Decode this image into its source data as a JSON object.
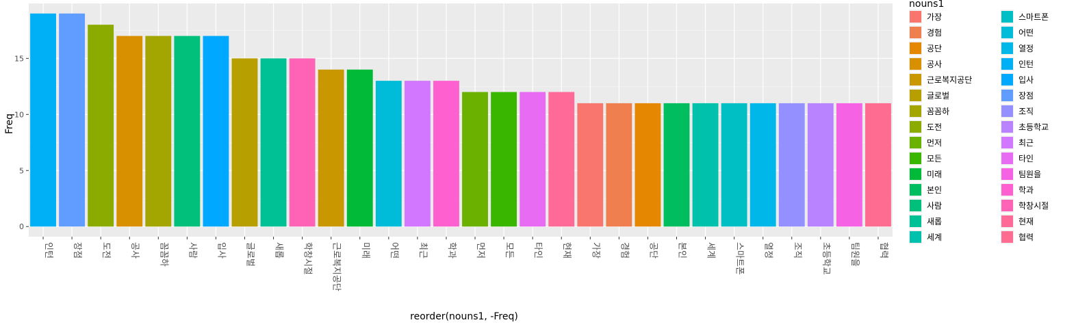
{
  "chart_data": {
    "type": "bar",
    "title": "",
    "xlabel": "reorder(nouns1, -Freq)",
    "ylabel": "Freq",
    "ylim": [
      -0.9,
      19.9
    ],
    "yticks": [
      0,
      5,
      10,
      15
    ],
    "grid": "on",
    "background": "#EBEBEB",
    "legend_title": "nouns1",
    "legend_position": "right",
    "categories": [
      "인턴",
      "장점",
      "도전",
      "공사",
      "꼼꼼하",
      "사람",
      "입사",
      "글로벌",
      "새롭",
      "학창시절",
      "근로복지공단",
      "미래",
      "어떤",
      "최근",
      "학과",
      "먼저",
      "모든",
      "타인",
      "현재",
      "가장",
      "경험",
      "공단",
      "본인",
      "세계",
      "스마트폰",
      "열정",
      "조직",
      "초등학교",
      "팀원을",
      "협력"
    ],
    "values": [
      19,
      19,
      18,
      17,
      17,
      17,
      17,
      15,
      15,
      15,
      14,
      14,
      13,
      13,
      13,
      12,
      12,
      12,
      12,
      11,
      11,
      11,
      11,
      11,
      11,
      11,
      11,
      11,
      11,
      11
    ],
    "legend_entries": [
      {
        "label": "가장",
        "color": "#F8766D"
      },
      {
        "label": "경험",
        "color": "#F07F4F"
      },
      {
        "label": "공단",
        "color": "#E58700"
      },
      {
        "label": "공사",
        "color": "#D89000"
      },
      {
        "label": "근로복지공단",
        "color": "#C99800"
      },
      {
        "label": "글로벌",
        "color": "#B79F00"
      },
      {
        "label": "꼼꼼하",
        "color": "#A3A500"
      },
      {
        "label": "도전",
        "color": "#8CAB00"
      },
      {
        "label": "먼저",
        "color": "#6BB100"
      },
      {
        "label": "모든",
        "color": "#39B600"
      },
      {
        "label": "미래",
        "color": "#00BA38"
      },
      {
        "label": "본인",
        "color": "#00BD5F"
      },
      {
        "label": "사람",
        "color": "#00C07B"
      },
      {
        "label": "새롭",
        "color": "#00C096"
      },
      {
        "label": "세계",
        "color": "#00C1AC"
      },
      {
        "label": "스마트폰",
        "color": "#00BFC4"
      },
      {
        "label": "어떤",
        "color": "#00BCD8"
      },
      {
        "label": "열정",
        "color": "#00B7EA"
      },
      {
        "label": "인턴",
        "color": "#00B0F6"
      },
      {
        "label": "입사",
        "color": "#00A9FF"
      },
      {
        "label": "장점",
        "color": "#619CFF"
      },
      {
        "label": "조직",
        "color": "#9590FF"
      },
      {
        "label": "초등학교",
        "color": "#B983FF"
      },
      {
        "label": "최근",
        "color": "#D277FF"
      },
      {
        "label": "타인",
        "color": "#E76BF3"
      },
      {
        "label": "팀원을",
        "color": "#F562E4"
      },
      {
        "label": "학과",
        "color": "#FE61CF"
      },
      {
        "label": "학창시절",
        "color": "#FF63B6"
      },
      {
        "label": "현재",
        "color": "#FF6A98"
      },
      {
        "label": "협력",
        "color": "#FF6C91"
      }
    ]
  }
}
